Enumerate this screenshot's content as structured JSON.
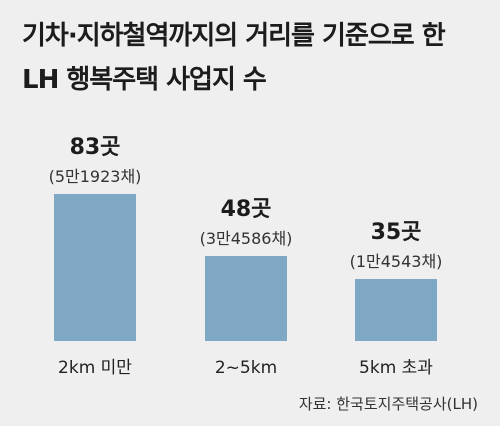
{
  "title_line1": "기차·지하철역까지의 거리를 기준으로 한",
  "title_line2": "LH 행복주택 사업지 수",
  "source": "자료: 한국토지주택공사(LH)",
  "colors": {
    "bar": "#7fa8c5",
    "background": "#efefef",
    "text": "#222222"
  },
  "chart_data": {
    "type": "bar",
    "categories": [
      "2km 미만",
      "2~5km",
      "5km 초과"
    ],
    "values": [
      83,
      48,
      35
    ],
    "value_labels": [
      "83곳",
      "48곳",
      "35곳"
    ],
    "sub_labels": [
      "(5만1923채)",
      "(3만4586채)",
      "(1만4543채)"
    ],
    "title": "기차·지하철역까지의 거리를 기준으로 한 LH 행복주택 사업지 수",
    "ylim": [
      0,
      83
    ],
    "grid": false
  }
}
